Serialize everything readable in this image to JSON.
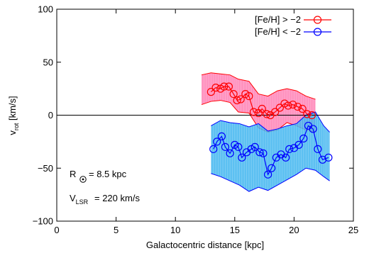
{
  "chart_data": {
    "type": "line",
    "xlabel": "Galactocentric distance [kpc]",
    "ylabel": "v_rot [km/s]",
    "xlim": [
      0,
      25
    ],
    "ylim": [
      -100,
      100
    ],
    "xticks": [
      "0",
      "5",
      "10",
      "15",
      "20",
      "25"
    ],
    "yticks": [
      "100",
      "50",
      "0",
      "-50",
      "-100"
    ],
    "grid": false,
    "zero_line": true,
    "legend_placement": "top-right",
    "annotations": {
      "r_sun": "= 8.5 kpc",
      "v_lsr": "= 220 km/s"
    },
    "series": [
      {
        "name": "[Fe/H] > −2",
        "color": "#ff0000",
        "band_color": "#ff7fb4",
        "x": [
          13.0,
          13.4,
          13.8,
          14.1,
          14.5,
          14.9,
          15.2,
          15.5,
          15.9,
          16.2,
          16.6,
          17.0,
          17.3,
          17.7,
          18.0,
          18.4,
          18.8,
          19.2,
          19.5,
          19.9,
          20.3,
          20.7,
          21.1,
          21.5
        ],
        "y": [
          22,
          26,
          25,
          27,
          27,
          20,
          14,
          15,
          20,
          18,
          3,
          2,
          6,
          1,
          0,
          3,
          7,
          11,
          9,
          10,
          8,
          6,
          1,
          0
        ],
        "band_x": [
          12.2,
          13.0,
          13.8,
          14.6,
          15.3,
          16.2,
          17.0,
          17.8,
          18.6,
          19.4,
          20.2,
          21.0,
          21.8
        ],
        "band_upper": [
          38,
          40,
          39,
          38,
          34,
          32,
          20,
          18,
          23,
          25,
          23,
          18,
          15
        ],
        "band_lower": [
          10,
          13,
          14,
          12,
          3,
          2,
          -12,
          -16,
          -14,
          -7,
          -10,
          -14,
          -16
        ]
      },
      {
        "name": "[Fe/H] < −2",
        "color": "#0000ff",
        "band_color": "#3fb5f0",
        "x": [
          13.2,
          13.5,
          13.9,
          14.2,
          14.6,
          15.0,
          15.3,
          15.6,
          16.0,
          16.4,
          16.7,
          17.1,
          17.4,
          17.8,
          18.1,
          18.5,
          18.9,
          19.3,
          19.6,
          20.0,
          20.4,
          20.8,
          21.2,
          21.6,
          22.0,
          22.4,
          22.9
        ],
        "y": [
          -32,
          -25,
          -20,
          -30,
          -36,
          -28,
          -30,
          -40,
          -35,
          -32,
          -30,
          -35,
          -36,
          -56,
          -50,
          -40,
          -37,
          -40,
          -32,
          -31,
          -28,
          -22,
          -10,
          -13,
          -32,
          -42,
          -40
        ],
        "band_x": [
          13.0,
          13.8,
          14.6,
          15.4,
          16.2,
          17.0,
          17.8,
          18.6,
          19.4,
          20.2,
          21.0,
          21.8,
          22.5,
          23.0
        ],
        "band_upper": [
          -10,
          -5,
          -7,
          -8,
          -11,
          -8,
          -15,
          -13,
          -10,
          -8,
          0,
          3,
          -10,
          -16
        ],
        "band_lower": [
          -55,
          -58,
          -62,
          -66,
          -72,
          -68,
          -71,
          -66,
          -61,
          -56,
          -50,
          -52,
          -58,
          -62
        ]
      }
    ]
  }
}
